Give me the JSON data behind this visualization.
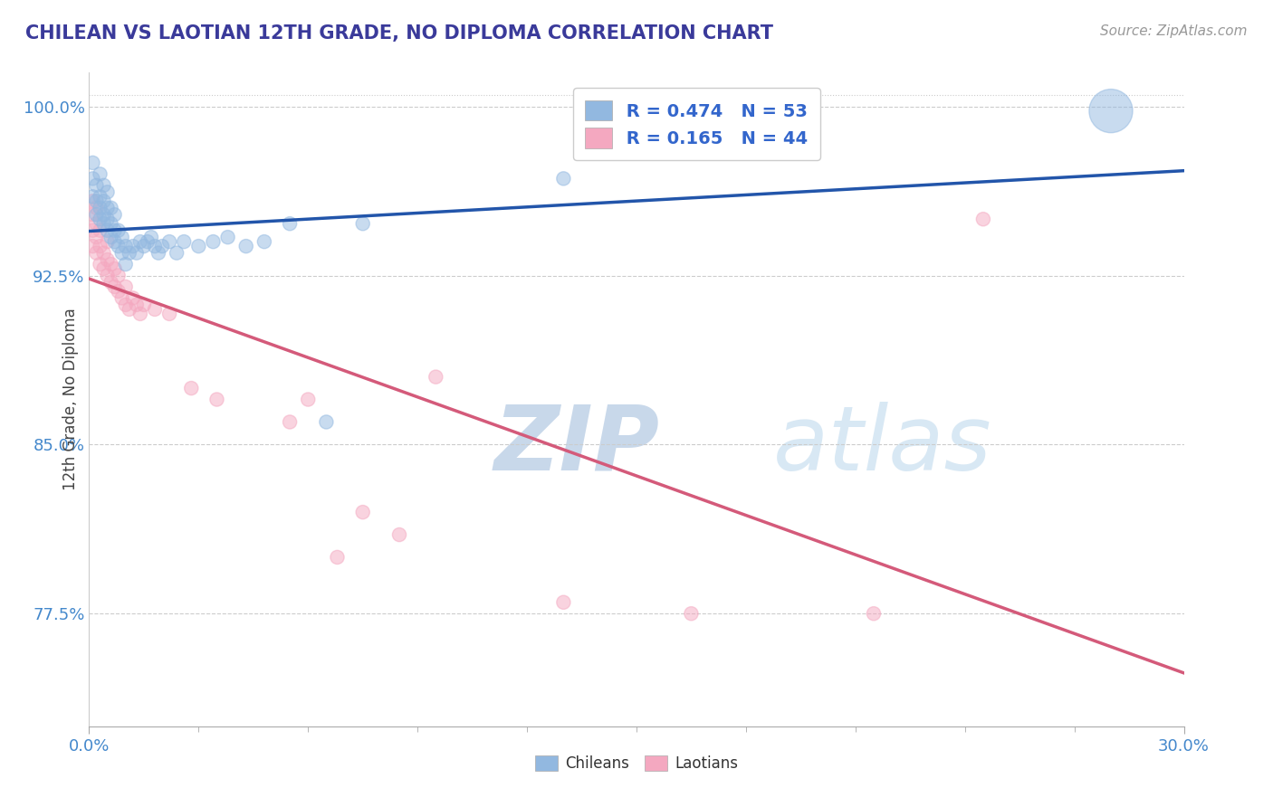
{
  "title": "CHILEAN VS LAOTIAN 12TH GRADE, NO DIPLOMA CORRELATION CHART",
  "source_text": "Source: ZipAtlas.com",
  "ylabel": "12th Grade, No Diploma",
  "x_min": 0.0,
  "x_max": 0.3,
  "y_min": 0.725,
  "y_max": 1.015,
  "y_ticks": [
    0.775,
    0.85,
    0.925,
    1.0
  ],
  "y_tick_labels": [
    "77.5%",
    "85.0%",
    "92.5%",
    "100.0%"
  ],
  "x_tick_labels": [
    "0.0%",
    "30.0%"
  ],
  "legend_r1": "R = 0.474",
  "legend_n1": "N = 53",
  "legend_r2": "R = 0.165",
  "legend_n2": "N = 44",
  "legend_label1": "Chileans",
  "legend_label2": "Laotians",
  "blue_color": "#92b8e0",
  "pink_color": "#f4a8c0",
  "blue_line_color": "#2255aa",
  "pink_line_color": "#d45a7a",
  "title_color": "#3a3a9a",
  "watermark_color": "#dce8f4",
  "source_color": "#999999",
  "background_color": "#ffffff",
  "chilean_x": [
    0.001,
    0.001,
    0.001,
    0.002,
    0.002,
    0.002,
    0.003,
    0.003,
    0.003,
    0.003,
    0.004,
    0.004,
    0.004,
    0.004,
    0.005,
    0.005,
    0.005,
    0.005,
    0.006,
    0.006,
    0.006,
    0.007,
    0.007,
    0.007,
    0.008,
    0.008,
    0.009,
    0.009,
    0.01,
    0.01,
    0.011,
    0.012,
    0.013,
    0.014,
    0.015,
    0.016,
    0.017,
    0.018,
    0.019,
    0.02,
    0.022,
    0.024,
    0.026,
    0.03,
    0.034,
    0.038,
    0.043,
    0.048,
    0.055,
    0.065,
    0.075,
    0.13,
    0.28
  ],
  "chilean_y": [
    0.96,
    0.968,
    0.975,
    0.952,
    0.958,
    0.965,
    0.95,
    0.955,
    0.96,
    0.97,
    0.948,
    0.952,
    0.958,
    0.965,
    0.945,
    0.95,
    0.955,
    0.962,
    0.942,
    0.948,
    0.955,
    0.94,
    0.945,
    0.952,
    0.938,
    0.945,
    0.935,
    0.942,
    0.93,
    0.938,
    0.935,
    0.938,
    0.935,
    0.94,
    0.938,
    0.94,
    0.942,
    0.938,
    0.935,
    0.938,
    0.94,
    0.935,
    0.94,
    0.938,
    0.94,
    0.942,
    0.938,
    0.94,
    0.948,
    0.86,
    0.948,
    0.968,
    0.998
  ],
  "chilean_sizes": [
    120,
    120,
    120,
    120,
    120,
    120,
    120,
    120,
    120,
    120,
    120,
    120,
    120,
    120,
    120,
    120,
    120,
    120,
    120,
    120,
    120,
    120,
    120,
    120,
    120,
    120,
    120,
    120,
    120,
    120,
    120,
    120,
    120,
    120,
    120,
    120,
    120,
    120,
    120,
    120,
    120,
    120,
    120,
    120,
    120,
    120,
    120,
    120,
    120,
    120,
    120,
    120,
    1200
  ],
  "laotian_x": [
    0.001,
    0.001,
    0.001,
    0.001,
    0.002,
    0.002,
    0.002,
    0.002,
    0.003,
    0.003,
    0.003,
    0.004,
    0.004,
    0.005,
    0.005,
    0.005,
    0.006,
    0.006,
    0.007,
    0.007,
    0.008,
    0.008,
    0.009,
    0.01,
    0.01,
    0.011,
    0.012,
    0.013,
    0.014,
    0.015,
    0.018,
    0.022,
    0.028,
    0.035,
    0.055,
    0.06,
    0.068,
    0.075,
    0.085,
    0.095,
    0.13,
    0.165,
    0.215,
    0.245
  ],
  "laotian_y": [
    0.938,
    0.945,
    0.952,
    0.958,
    0.935,
    0.942,
    0.948,
    0.955,
    0.93,
    0.938,
    0.945,
    0.928,
    0.935,
    0.925,
    0.932,
    0.94,
    0.922,
    0.93,
    0.92,
    0.928,
    0.918,
    0.925,
    0.915,
    0.912,
    0.92,
    0.91,
    0.915,
    0.912,
    0.908,
    0.912,
    0.91,
    0.908,
    0.875,
    0.87,
    0.86,
    0.87,
    0.8,
    0.82,
    0.81,
    0.88,
    0.78,
    0.775,
    0.775,
    0.95
  ],
  "laotian_sizes": [
    120,
    120,
    120,
    120,
    120,
    120,
    120,
    120,
    120,
    120,
    120,
    120,
    120,
    120,
    120,
    120,
    120,
    120,
    120,
    120,
    120,
    120,
    120,
    120,
    120,
    120,
    120,
    120,
    120,
    120,
    120,
    120,
    120,
    120,
    120,
    120,
    120,
    120,
    120,
    120,
    120,
    120,
    120,
    120
  ]
}
